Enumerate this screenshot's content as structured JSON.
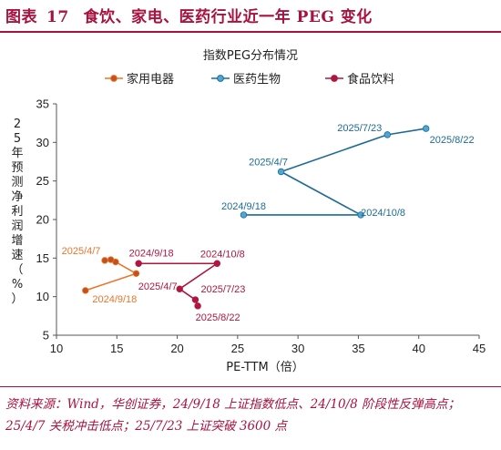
{
  "figure": {
    "title_prefix": "图表",
    "title_number": "17",
    "title_text": "食饮、家电、医药行业近一年 PEG 变化"
  },
  "footnote": "资料来源：Wind，华创证券，24/9/18 上证指数低点、24/10/8 阶段性反弹高点；25/4/7 关税冲击低点；25/7/23 上证突破 3600 点",
  "chart_data": {
    "type": "line",
    "title": "指数PEG分布情况",
    "xlabel": "PE-TTM（倍）",
    "ylabel": "25年预测净利润增速（%）",
    "xlim": [
      10,
      45
    ],
    "ylim": [
      5,
      35
    ],
    "xticks": [
      10,
      15,
      20,
      25,
      30,
      35,
      40,
      45
    ],
    "yticks": [
      5,
      10,
      15,
      20,
      25,
      30,
      35
    ],
    "grid": false,
    "legend_position": "top",
    "series": [
      {
        "name": "家用电器",
        "color": "#e8762c",
        "marker_color": "#c4501a",
        "x": [
          12.4,
          16.6,
          14.9,
          14.5,
          14.0
        ],
        "y": [
          10.8,
          13.0,
          14.5,
          14.8,
          14.7
        ],
        "point_labels": [
          "2024/9/18",
          "",
          "",
          "",
          "2025/4/7"
        ]
      },
      {
        "name": "医药生物",
        "color": "#1d6b94",
        "marker_color": "#4ea7d6",
        "x": [
          25.5,
          35.2,
          28.6,
          37.4,
          40.6
        ],
        "y": [
          20.6,
          20.6,
          26.2,
          31.0,
          31.8
        ],
        "point_labels": [
          "2024/9/18",
          "2024/10/8",
          "2025/4/7",
          "2025/7/23",
          "2025/8/22"
        ]
      },
      {
        "name": "食品饮料",
        "color": "#b0163f",
        "marker_color": "#b0163f",
        "x": [
          16.8,
          23.3,
          20.2,
          21.5,
          21.7
        ],
        "y": [
          14.3,
          14.3,
          11.0,
          9.6,
          8.8
        ],
        "point_labels": [
          "2024/9/18",
          "2024/10/8",
          "2025/4/7",
          "2025/7/23",
          "2025/8/22"
        ]
      }
    ]
  }
}
